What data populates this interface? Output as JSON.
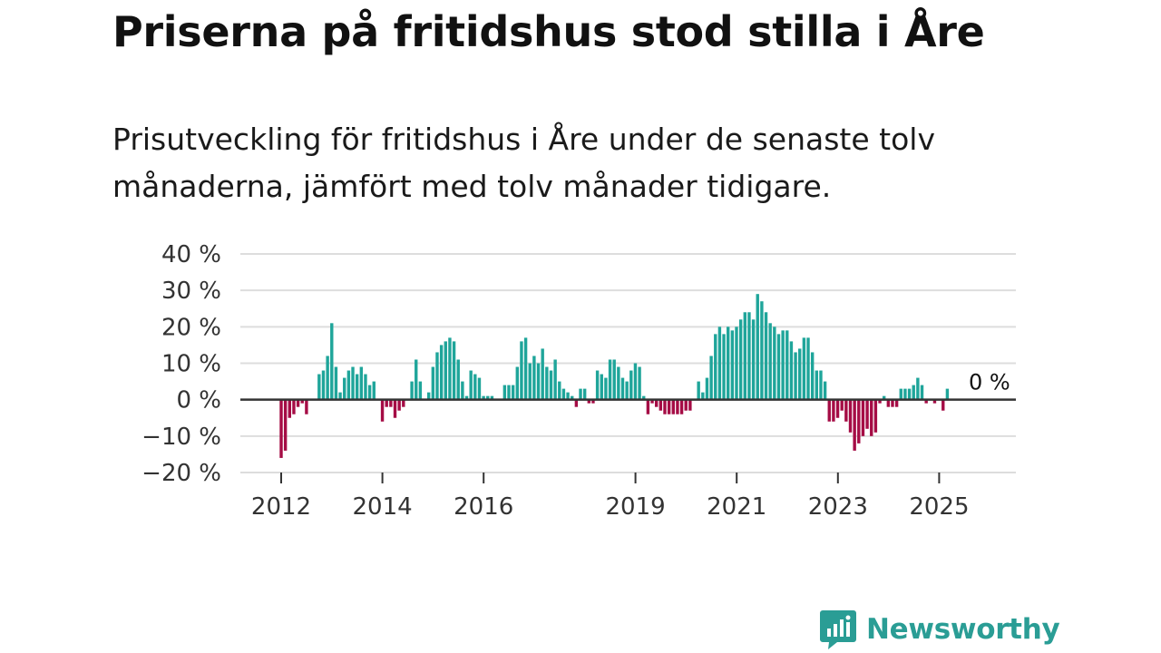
{
  "header": {
    "title": "Priserna på fritidshus stod stilla i Åre",
    "subtitle": "Prisutveckling för fritidshus i Åre under de senaste tolv månaderna, jämfört med tolv månader tidigare."
  },
  "brand": {
    "name": "Newsworthy",
    "color": "#2a9d95"
  },
  "colors": {
    "positive": "#1fa59a",
    "negative": "#a50c45",
    "grid": "#dddddd",
    "zero": "#333333"
  },
  "chart_data": {
    "type": "bar",
    "title": "Priserna på fritidshus stod stilla i Åre",
    "subtitle": "Prisutveckling för fritidshus i Åre under de senaste tolv månaderna, jämfört med tolv månader tidigare.",
    "xlabel": "",
    "ylabel": "",
    "ylim": [
      -20,
      40
    ],
    "yticks": [
      {
        "value": 40,
        "label": "40 %"
      },
      {
        "value": 30,
        "label": "30 %"
      },
      {
        "value": 20,
        "label": "20 %"
      },
      {
        "value": 10,
        "label": "10 %"
      },
      {
        "value": 0,
        "label": "0 %"
      },
      {
        "value": -10,
        "label": "−10 %"
      },
      {
        "value": -20,
        "label": "−20 %"
      }
    ],
    "xticks": [
      {
        "value": 2012,
        "label": "2012"
      },
      {
        "value": 2014,
        "label": "2014"
      },
      {
        "value": 2016,
        "label": "2016"
      },
      {
        "value": 2019,
        "label": "2019"
      },
      {
        "value": 2021,
        "label": "2021"
      },
      {
        "value": 2023,
        "label": "2023"
      },
      {
        "value": 2025,
        "label": "2025"
      }
    ],
    "x_start": 2012.0,
    "x_step": 0.0833,
    "values": [
      -16,
      -14,
      -5,
      -4,
      -2,
      -1,
      -4,
      0,
      0,
      7,
      8,
      12,
      21,
      9,
      2,
      6,
      8,
      9,
      7,
      9,
      7,
      4,
      5,
      0,
      -6,
      -2,
      -2,
      -5,
      -3,
      -2,
      0,
      5,
      11,
      5,
      0,
      2,
      9,
      13,
      15,
      16,
      17,
      16,
      11,
      5,
      1,
      8,
      7,
      6,
      1,
      1,
      1,
      0,
      0,
      4,
      4,
      4,
      9,
      16,
      17,
      10,
      12,
      10,
      14,
      9,
      8,
      11,
      5,
      3,
      2,
      1,
      -2,
      3,
      3,
      -1,
      -1,
      8,
      7,
      6,
      11,
      11,
      9,
      6,
      5,
      8,
      10,
      9,
      1,
      -4,
      -1,
      -2,
      -3,
      -4,
      -4,
      -4,
      -4,
      -4,
      -3,
      -3,
      0,
      5,
      2,
      6,
      12,
      18,
      20,
      18,
      20,
      19,
      20,
      22,
      24,
      24,
      22,
      29,
      27,
      24,
      21,
      20,
      18,
      19,
      19,
      16,
      13,
      14,
      17,
      17,
      13,
      8,
      8,
      5,
      -6,
      -6,
      -5,
      -3,
      -6,
      -9,
      -14,
      -12,
      -10,
      -8,
      -10,
      -9,
      -1,
      1,
      -2,
      -2,
      -2,
      3,
      3,
      3,
      4,
      6,
      4,
      -1,
      0,
      -1,
      0,
      -3,
      3
    ],
    "annotation": {
      "text": "0 %",
      "x": 2025.85,
      "y": 5
    }
  }
}
